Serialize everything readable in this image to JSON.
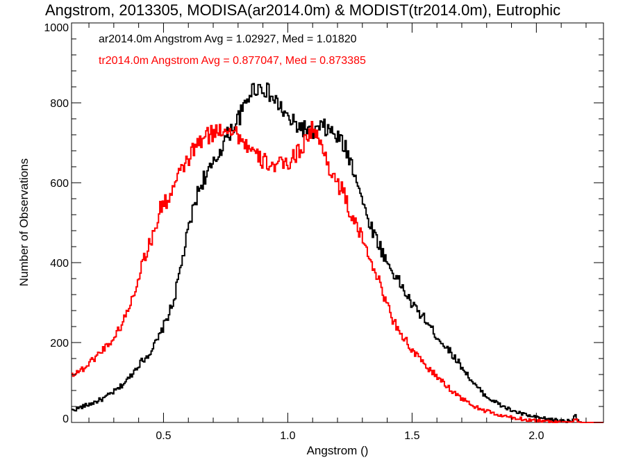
{
  "chart_data": {
    "type": "line",
    "title": "Angstrom, 2013305, MODISA(ar2014.0m) & MODIST(tr2014.0m), Eutrophic",
    "xlabel": "Angstrom ()",
    "ylabel": "Number of Observations",
    "xlim": [
      0.13,
      2.27
    ],
    "ylim": [
      0,
      1000
    ],
    "xticks": [
      0.5,
      1.0,
      1.5,
      2.0
    ],
    "xtick_labels": [
      "0.5",
      "1.0",
      "1.5",
      "2.0"
    ],
    "yticks": [
      0,
      200,
      400,
      600,
      800,
      1000
    ],
    "ytick_labels": [
      "0",
      "200",
      "400",
      "600",
      "800",
      "1000"
    ],
    "grid": false,
    "annotations": [
      {
        "text": "ar2014.0m Angstrom Avg = 1.02927, Med = 1.01820",
        "color": "#000000"
      },
      {
        "text": "tr2014.0m Angstrom Avg = 0.877047, Med = 0.873385",
        "color": "#ff0000"
      }
    ],
    "series": [
      {
        "color": "#000000",
        "x": [
          0.13,
          0.2,
          0.26,
          0.32,
          0.36,
          0.4,
          0.44,
          0.48,
          0.51,
          0.54,
          0.57,
          0.6,
          0.63,
          0.66,
          0.7,
          0.74,
          0.78,
          0.82,
          0.85,
          0.88,
          0.91,
          0.94,
          0.97,
          1.0,
          1.03,
          1.07,
          1.1,
          1.14,
          1.18,
          1.22,
          1.25,
          1.28,
          1.31,
          1.35,
          1.4,
          1.45,
          1.5,
          1.55,
          1.6,
          1.65,
          1.7,
          1.75,
          1.8,
          1.85,
          1.9,
          1.95,
          2.0,
          2.05,
          2.1,
          2.14,
          2.155,
          2.165,
          2.18,
          2.27
        ],
        "y": [
          30,
          45,
          60,
          85,
          110,
          145,
          170,
          210,
          255,
          300,
          390,
          480,
          560,
          610,
          640,
          700,
          740,
          780,
          830,
          840,
          835,
          810,
          790,
          760,
          745,
          735,
          725,
          740,
          725,
          700,
          660,
          610,
          530,
          470,
          400,
          350,
          295,
          260,
          215,
          180,
          140,
          95,
          65,
          45,
          30,
          20,
          12,
          8,
          5,
          3,
          20,
          8,
          0,
          0
        ]
      },
      {
        "color": "#ff0000",
        "x": [
          0.13,
          0.18,
          0.22,
          0.26,
          0.3,
          0.34,
          0.38,
          0.42,
          0.46,
          0.49,
          0.52,
          0.55,
          0.59,
          0.63,
          0.67,
          0.72,
          0.76,
          0.8,
          0.84,
          0.88,
          0.92,
          0.96,
          1.0,
          1.04,
          1.08,
          1.1,
          1.12,
          1.15,
          1.18,
          1.22,
          1.26,
          1.3,
          1.34,
          1.38,
          1.42,
          1.46,
          1.5,
          1.55,
          1.6,
          1.65,
          1.7,
          1.75,
          1.8,
          1.85,
          1.9,
          1.95,
          2.0,
          2.05,
          2.1,
          2.14,
          2.155,
          2.165,
          2.18,
          2.27
        ],
        "y": [
          120,
          135,
          160,
          185,
          210,
          255,
          320,
          410,
          470,
          540,
          560,
          600,
          650,
          690,
          715,
          730,
          740,
          720,
          690,
          660,
          650,
          640,
          650,
          675,
          715,
          740,
          710,
          670,
          620,
          580,
          510,
          460,
          400,
          330,
          260,
          220,
          180,
          145,
          115,
          85,
          60,
          40,
          28,
          18,
          12,
          8,
          5,
          3,
          2,
          1,
          10,
          3,
          0,
          0
        ]
      }
    ]
  }
}
